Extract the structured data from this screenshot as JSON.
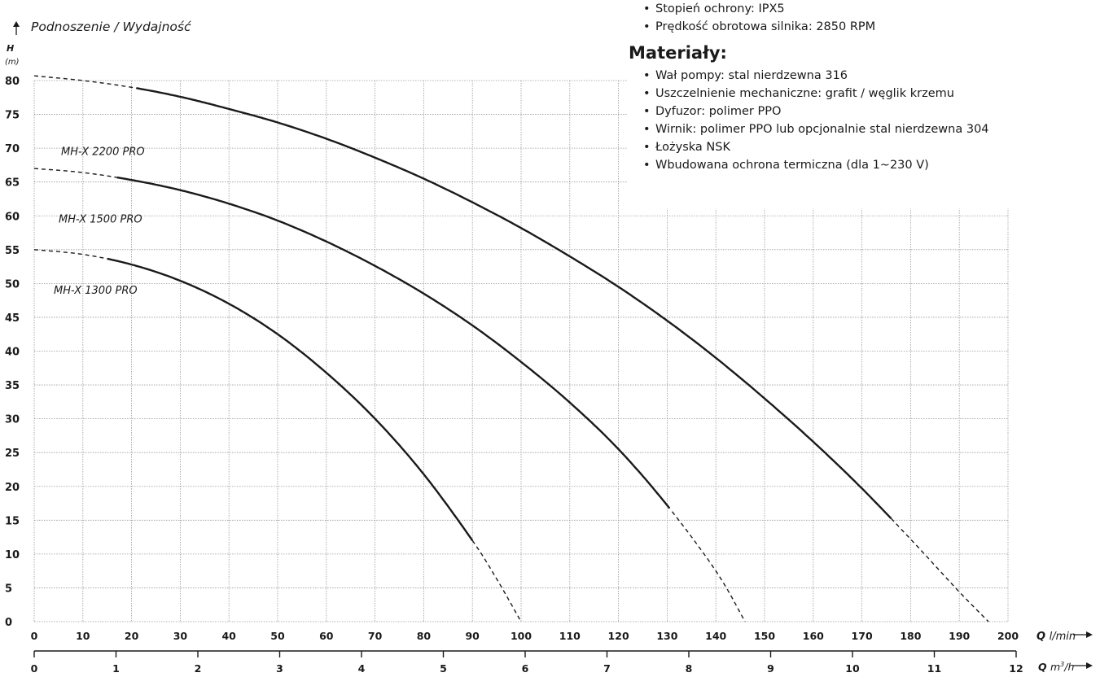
{
  "chart_data": {
    "type": "line",
    "title": "Podnoszenie / Wydajność",
    "ylabel": "H",
    "yunit": "(m)",
    "ylim": [
      0,
      80
    ],
    "yticks": [
      0,
      5,
      10,
      15,
      20,
      25,
      30,
      35,
      40,
      45,
      50,
      55,
      60,
      65,
      70,
      75,
      80
    ],
    "xlim": [
      0,
      200
    ],
    "xlabel": "Q",
    "xunit": "l/min",
    "xticks": [
      0,
      10,
      20,
      30,
      40,
      50,
      60,
      70,
      80,
      90,
      100,
      110,
      120,
      130,
      140,
      150,
      160,
      170,
      180,
      190,
      200
    ],
    "x2label": "Q",
    "x2unit_base": "m",
    "x2unit_sup": "3",
    "x2unit_suffix": "/h",
    "x2ticks": [
      0,
      1,
      2,
      3,
      4,
      5,
      6,
      7,
      8,
      9,
      10,
      11,
      12
    ],
    "grid": true,
    "series": [
      {
        "name": "MH-X 2200 PRO",
        "x": [
          0,
          10,
          20,
          30,
          40,
          50,
          60,
          70,
          80,
          90,
          100,
          110,
          120,
          130,
          140,
          150,
          160,
          170,
          180,
          190,
          196
        ],
        "y": [
          80.7,
          80,
          79,
          77.6,
          75.8,
          73.8,
          71.4,
          68.6,
          65.5,
          62,
          58.2,
          54,
          49.5,
          44.5,
          39,
          33,
          26.6,
          19.7,
          12.2,
          4.4,
          0
        ],
        "solid_range": [
          21,
          176
        ]
      },
      {
        "name": "MH-X 1500 PRO",
        "x": [
          0,
          10,
          20,
          30,
          40,
          50,
          60,
          70,
          80,
          90,
          100,
          110,
          120,
          130,
          140,
          146
        ],
        "y": [
          67,
          66.4,
          65.3,
          63.8,
          61.8,
          59.3,
          56.2,
          52.6,
          48.5,
          43.8,
          38.4,
          32.4,
          25.5,
          17.2,
          7.5,
          0
        ],
        "solid_range": [
          17,
          131
        ]
      },
      {
        "name": "MH-X 1300 PRO",
        "x": [
          0,
          10,
          20,
          30,
          40,
          50,
          60,
          70,
          80,
          90,
          95,
          100
        ],
        "y": [
          55,
          54.3,
          52.8,
          50.4,
          47,
          42.5,
          36.8,
          30,
          21.8,
          12,
          6.3,
          0
        ],
        "solid_range": [
          15,
          90
        ]
      }
    ]
  },
  "specs": {
    "top_items": [
      "Stopień ochrony: IPX5",
      "Prędkość obrotowa silnika: 2850 RPM"
    ],
    "materials_heading": "Materiały:",
    "materials": [
      "Wał pompy: stal nierdzewna 316",
      "Uszczelnienie mechaniczne: grafit / węglik krzemu",
      "Dyfuzor: polimer PPO",
      "Wirnik: polimer PPO lub opcjonalnie stal nierdzewna 304",
      "Łożyska NSK",
      "Wbudowana ochrona termiczna (dla 1~230 V)"
    ]
  },
  "colors": {
    "line": "#1a1a1a",
    "grid": "#9a9a9a",
    "text": "#1a1a1a"
  }
}
